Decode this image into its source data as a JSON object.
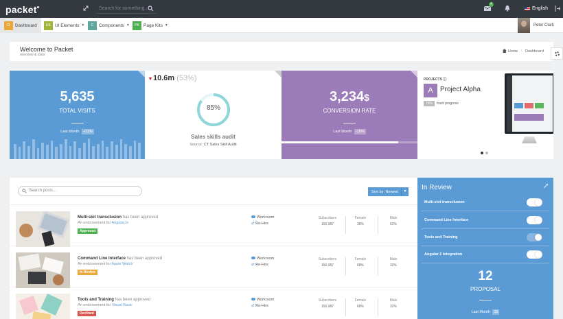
{
  "topbar": {
    "logo": "packet",
    "search_placeholder": "Search for something...",
    "mail_count": "4",
    "language": "English"
  },
  "nav": {
    "items": [
      {
        "badge": "D",
        "label": "Dashboard",
        "color": "#e8a93a",
        "has_caret": false
      },
      {
        "badge": "UE",
        "label": "UI Elements",
        "color": "#9fb53a",
        "has_caret": true
      },
      {
        "badge": "C",
        "label": "Components",
        "color": "#5ea59e",
        "has_caret": true
      },
      {
        "badge": "PK",
        "label": "Page Kits",
        "color": "#4caf50",
        "has_caret": true
      }
    ],
    "user_name": "Peter Clark"
  },
  "header": {
    "title": "Welcome to Packet",
    "subtitle": "overview & stats",
    "crumb_home": "Home",
    "crumb_sep": "\\",
    "crumb_current": "Dashboard"
  },
  "visits": {
    "value": "5,635",
    "label": "TOTAL VISITS",
    "last_month_label": "Last Month",
    "last_month_value": "+11%",
    "bars": [
      0.7,
      0.55,
      0.8,
      0.6,
      0.9,
      0.5,
      0.75,
      0.65,
      0.85,
      0.55,
      0.7,
      0.9,
      0.6,
      0.8,
      0.5,
      0.75,
      0.95,
      0.6,
      0.7,
      0.85,
      0.55,
      0.8,
      0.65,
      0.9,
      0.7,
      0.6,
      0.85,
      0.75
    ]
  },
  "audit": {
    "value": "10.6m",
    "percent": "(53%)",
    "donut_percent": 85,
    "donut_label": "85%",
    "title": "Sales skills audit",
    "source_label": "Source:",
    "source_value": "CT Sales Skill Audit",
    "accent": "#8ed6da"
  },
  "conversion": {
    "value": "3,234",
    "unit": "$",
    "label": "CONVERSION RATE",
    "last_month_label": "Last Month",
    "last_month_value": "-16%",
    "progress": 0.86
  },
  "project": {
    "label": "PROJECTS",
    "avatar": "A",
    "name": "Project Alpha",
    "progress_badge": "76%",
    "progress_text": "track progress"
  },
  "posts": {
    "search_placeholder": "Search posts...",
    "sort_label": "Sort by: Newest",
    "rows": [
      {
        "title": "Multi-slot transclusion",
        "title_suffix": "has been approved",
        "sub_prefix": "An endorsement for",
        "sub_link": "AngularJs",
        "status": "Approved",
        "status_color": "#4caf50",
        "action1": "Workroom",
        "action2": "Re-Hire",
        "subscribers_label": "Subscribers",
        "subscribers": "150,987",
        "female_label": "Female",
        "female": "38%",
        "male_label": "Male",
        "male": "62%"
      },
      {
        "title": "Command Line Interface",
        "title_suffix": "has been approved",
        "sub_prefix": "An endorsement for",
        "sub_link": "Apple Watch",
        "status": "In Review",
        "status_color": "#e8a93a",
        "action1": "Workroom",
        "action2": "Re-Hire",
        "subscribers_label": "Subscribers",
        "subscribers": "150,987",
        "female_label": "Female",
        "female": "68%",
        "male_label": "Male",
        "male": "32%"
      },
      {
        "title": "Tools and Training",
        "title_suffix": "has been approved",
        "sub_prefix": "An endorsement for",
        "sub_link": "Visual Basic",
        "status": "Declined",
        "status_color": "#d9534f",
        "action1": "Workroom",
        "action2": "Re-Hire",
        "subscribers_label": "Subscribers",
        "subscribers": "150,987",
        "female_label": "Female",
        "female": "68%",
        "male_label": "Male",
        "male": "32%"
      }
    ]
  },
  "review": {
    "title": "In Review",
    "items": [
      {
        "label": "Multi-slot transclusion",
        "on": false
      },
      {
        "label": "Command Line Interface",
        "on": false
      },
      {
        "label": "Tools and Training",
        "on": true
      },
      {
        "label": "Angular 2 Integration",
        "on": false
      }
    ],
    "count": "12",
    "count_label": "PROPOSAL",
    "last_month_label": "Last Month",
    "last_month_value": "16"
  }
}
